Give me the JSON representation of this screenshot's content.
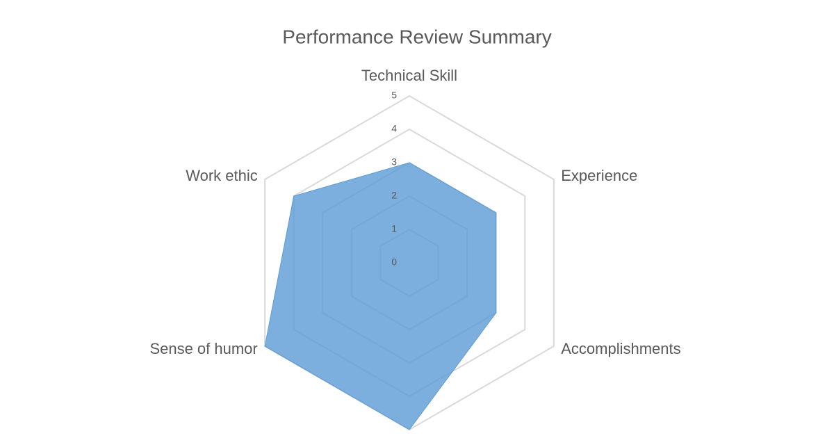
{
  "chart_data": {
    "type": "radar",
    "title": "Performance Review Summary",
    "categories": [
      "Technical Skill",
      "Experience",
      "Accomplishments",
      null,
      "Sense of humor",
      "Work ethic"
    ],
    "values": [
      3,
      3,
      3,
      5,
      5,
      4
    ],
    "color": "#5b9bd5",
    "rlim": [
      0,
      5
    ],
    "rticks": [
      0,
      1,
      2,
      3,
      4,
      5
    ],
    "grid": true
  }
}
